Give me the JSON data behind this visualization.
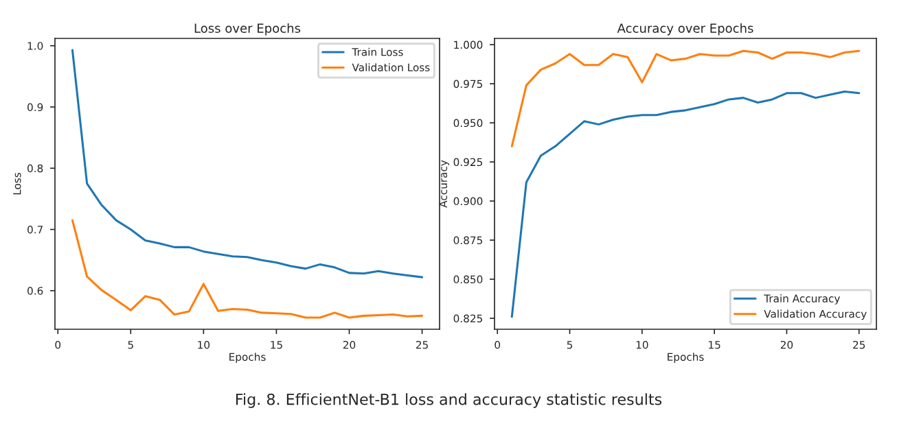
{
  "chart_data": [
    {
      "type": "line",
      "title": "Loss over Epochs",
      "xlabel": "Epochs",
      "ylabel": "Loss",
      "x": [
        1,
        2,
        3,
        4,
        5,
        6,
        7,
        8,
        9,
        10,
        11,
        12,
        13,
        14,
        15,
        16,
        17,
        18,
        19,
        20,
        21,
        22,
        23,
        24,
        25
      ],
      "series": [
        {
          "name": "Train Loss",
          "color": "#1f77b4",
          "values": [
            0.993,
            0.775,
            0.74,
            0.715,
            0.7,
            0.682,
            0.677,
            0.671,
            0.671,
            0.664,
            0.66,
            0.656,
            0.655,
            0.65,
            0.646,
            0.64,
            0.636,
            0.643,
            0.638,
            0.629,
            0.628,
            0.632,
            0.628,
            0.625,
            0.622
          ]
        },
        {
          "name": "Validation Loss",
          "color": "#ff7f0e",
          "values": [
            0.715,
            0.623,
            0.601,
            0.585,
            0.568,
            0.591,
            0.585,
            0.561,
            0.566,
            0.611,
            0.567,
            0.57,
            0.569,
            0.564,
            0.563,
            0.562,
            0.556,
            0.556,
            0.564,
            0.556,
            0.559,
            0.56,
            0.561,
            0.558,
            0.559
          ]
        }
      ],
      "xlim": [
        -0.2,
        26.2
      ],
      "xticks": [
        0,
        5,
        10,
        15,
        20,
        25
      ],
      "ylim": [
        0.537,
        1.012
      ],
      "yticks": [
        0.6,
        0.7,
        0.8,
        0.9,
        {
          "value": 1,
          "label": "1.0"
        }
      ],
      "grid": false,
      "legend": "top right",
      "annotations": [
        "Fig. 8. EfficientNet-B1 loss and accuracy statistic results"
      ]
    },
    {
      "type": "line",
      "title": "Accuracy over Epochs",
      "xlabel": "Epochs",
      "ylabel": "Accuracy",
      "x": [
        1,
        2,
        3,
        4,
        5,
        6,
        7,
        8,
        9,
        10,
        11,
        12,
        13,
        14,
        15,
        16,
        17,
        18,
        19,
        20,
        21,
        22,
        23,
        24,
        25
      ],
      "series": [
        {
          "name": "Train Accuracy",
          "color": "#1f77b4",
          "values": [
            0.826,
            0.912,
            0.929,
            0.935,
            0.943,
            0.951,
            0.949,
            0.952,
            0.954,
            0.955,
            0.955,
            0.957,
            0.958,
            0.96,
            0.962,
            0.965,
            0.966,
            0.963,
            0.965,
            0.969,
            0.969,
            0.966,
            0.968,
            0.97,
            0.969
          ]
        },
        {
          "name": "Validation Accuracy",
          "color": "#ff7f0e",
          "values": [
            0.935,
            0.974,
            0.984,
            0.988,
            0.994,
            0.987,
            0.987,
            0.994,
            0.992,
            0.976,
            0.994,
            0.99,
            0.991,
            0.994,
            0.993,
            0.993,
            0.996,
            0.995,
            0.991,
            0.995,
            0.995,
            0.994,
            0.992,
            0.995,
            0.996
          ]
        }
      ],
      "xlim": [
        -0.2,
        26.2
      ],
      "xticks": [
        0,
        5,
        10,
        15,
        20,
        25
      ],
      "ylim": [
        0.818,
        1.004
      ],
      "yticks": [
        0.825,
        {
          "value": 0.85,
          "label": "0.850"
        },
        0.875,
        {
          "value": 0.9,
          "label": "0.900"
        },
        0.925,
        {
          "value": 0.95,
          "label": "0.950"
        },
        0.975,
        {
          "value": 1,
          "label": "1.000"
        }
      ],
      "grid": false,
      "legend": "bottom right"
    }
  ]
}
